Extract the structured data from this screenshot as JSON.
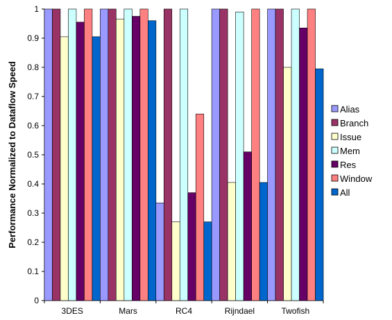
{
  "chart_data": {
    "type": "bar",
    "title": "",
    "xlabel": "",
    "ylabel": "Performance Normalized to Dataflow Speed",
    "ylim": [
      0,
      1
    ],
    "yticks": [
      "0",
      "0.1",
      "0.2",
      "0.3",
      "0.4",
      "0.5",
      "0.6",
      "0.7",
      "0.8",
      "0.9",
      "1"
    ],
    "categories": [
      "3DES",
      "Mars",
      "RC4",
      "Rijndael",
      "Twofish"
    ],
    "grid": false,
    "legend_position": "right",
    "series": [
      {
        "name": "Alias",
        "color": "#9999ff",
        "values": [
          1.0,
          1.0,
          0.335,
          1.0,
          1.0
        ]
      },
      {
        "name": "Branch",
        "color": "#993366",
        "values": [
          1.0,
          1.0,
          1.0,
          1.0,
          1.0
        ]
      },
      {
        "name": "Issue",
        "color": "#ffffcc",
        "values": [
          0.905,
          0.965,
          0.27,
          0.405,
          0.8
        ]
      },
      {
        "name": "Mem",
        "color": "#ccffff",
        "values": [
          1.0,
          1.0,
          1.0,
          0.99,
          1.0
        ]
      },
      {
        "name": "Res",
        "color": "#660066",
        "values": [
          0.955,
          0.975,
          0.37,
          0.51,
          0.935
        ]
      },
      {
        "name": "Window",
        "color": "#ff8080",
        "values": [
          1.0,
          1.0,
          0.64,
          1.0,
          1.0
        ]
      },
      {
        "name": "All",
        "color": "#0066cc",
        "values": [
          0.905,
          0.96,
          0.27,
          0.405,
          0.795
        ]
      }
    ]
  }
}
